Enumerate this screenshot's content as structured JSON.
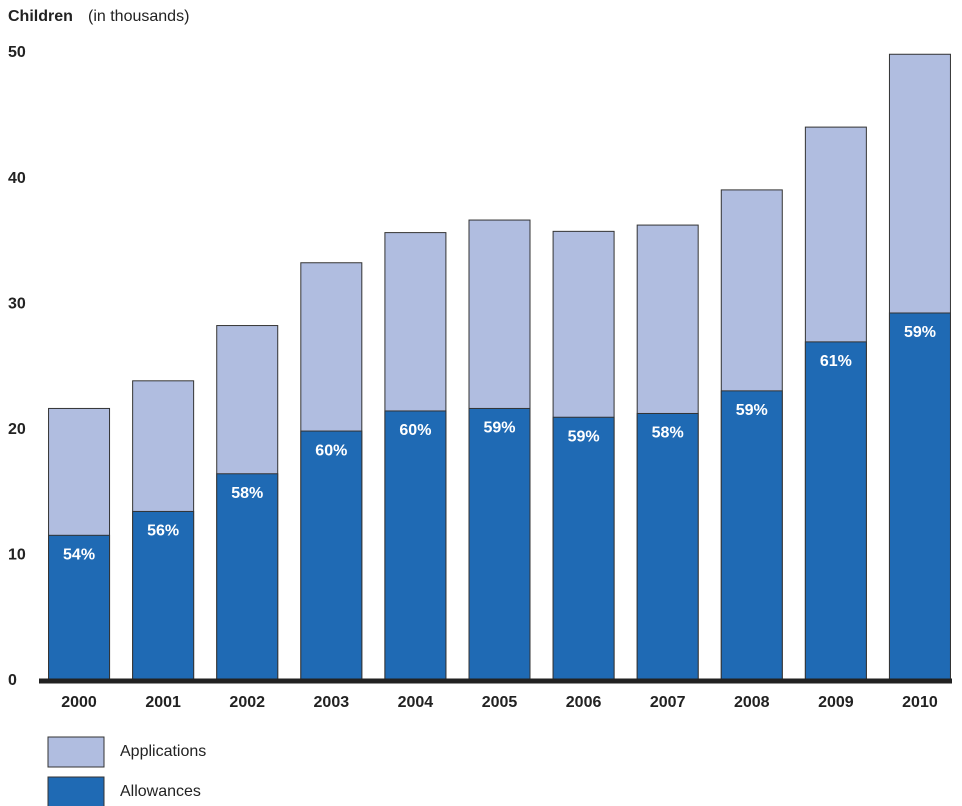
{
  "chart_data": {
    "type": "bar",
    "layout": "overlap",
    "title": "Children",
    "subtitle": "(in thousands)",
    "categories": [
      "2000",
      "2001",
      "2002",
      "2003",
      "2004",
      "2005",
      "2006",
      "2007",
      "2008",
      "2009",
      "2010"
    ],
    "series": [
      {
        "name": "Applications",
        "color": "#b0bde0",
        "values": [
          21.7,
          23.9,
          28.3,
          33.3,
          35.7,
          36.7,
          35.8,
          36.3,
          39.1,
          44.1,
          49.9
        ]
      },
      {
        "name": "Allowances",
        "color": "#1f6ab4",
        "values": [
          11.6,
          13.5,
          16.5,
          19.9,
          21.5,
          21.7,
          21.0,
          21.3,
          23.1,
          27.0,
          29.3
        ]
      }
    ],
    "shares": [
      54,
      56,
      58,
      60,
      60,
      59,
      59,
      58,
      59,
      61,
      59
    ],
    "share_labels": [
      "54%",
      "56%",
      "58%",
      "60%",
      "60%",
      "59%",
      "59%",
      "58%",
      "59%",
      "61%",
      "59%"
    ],
    "ylim": [
      0,
      50
    ],
    "yticks": [
      0,
      10,
      20,
      30,
      40,
      50
    ],
    "grid": false,
    "legend": "bottom-left"
  }
}
